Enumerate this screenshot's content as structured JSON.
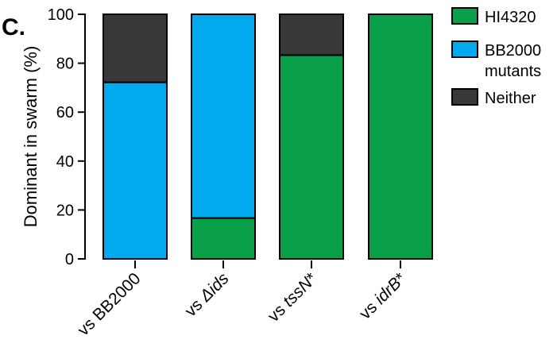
{
  "panel_label": "C.",
  "chart_data": {
    "type": "bar",
    "stacked": true,
    "categories": [
      "vs BB2000",
      "vs Δids",
      "vs tssN*",
      "vs idrB*"
    ],
    "category_labels": [
      {
        "prefix": "vs ",
        "italic": "",
        "suffix": "BB2000"
      },
      {
        "prefix": "vs ",
        "italic": "Δids",
        "suffix": ""
      },
      {
        "prefix": "vs ",
        "italic": "tssN",
        "suffix": "*"
      },
      {
        "prefix": "vs ",
        "italic": "idrB",
        "suffix": "*"
      }
    ],
    "series": [
      {
        "name": "HI4320",
        "color": "#0aa04a",
        "values": [
          0,
          16.7,
          83.3,
          100
        ]
      },
      {
        "name": "BB2000 mutants",
        "color": "#03a9ef",
        "values": [
          72.2,
          83.3,
          0,
          0
        ]
      },
      {
        "name": "Neither",
        "color": "#383838",
        "values": [
          27.8,
          0,
          16.7,
          0
        ]
      }
    ],
    "legend_entries": [
      {
        "lines": [
          "HI4320"
        ],
        "color": "#0aa04a"
      },
      {
        "lines": [
          "BB2000",
          "mutants"
        ],
        "color": "#03a9ef"
      },
      {
        "lines": [
          "Neither"
        ],
        "color": "#383838"
      }
    ],
    "ylabel": "Dominant in swarm (%)",
    "xlabel": "",
    "ylim": [
      0,
      100
    ],
    "yticks": [
      0,
      20,
      40,
      60,
      80,
      100
    ],
    "legend_position": "right",
    "grid": false
  }
}
